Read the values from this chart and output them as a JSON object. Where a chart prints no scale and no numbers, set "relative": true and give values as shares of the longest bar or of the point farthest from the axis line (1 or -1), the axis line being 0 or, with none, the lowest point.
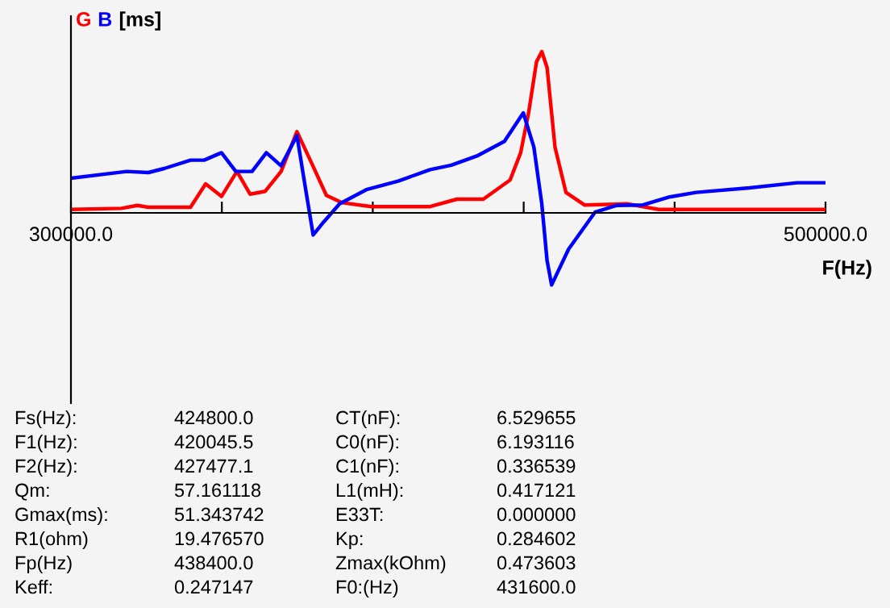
{
  "chart_data": {
    "type": "line",
    "relative": true,
    "ylabel": "[ms]",
    "xlabel": "F(Hz)",
    "xlim": [
      300000,
      500000
    ],
    "xticks": [
      {
        "value": 300000,
        "label": "300000.0"
      },
      {
        "value": 340000,
        "label": null
      },
      {
        "value": 380000,
        "label": null
      },
      {
        "value": 420000,
        "label": null
      },
      {
        "value": 460000,
        "label": null
      },
      {
        "value": 500000,
        "label": "500000.0"
      }
    ],
    "grid": false,
    "legend": false,
    "marker": "none",
    "line_style": "solid",
    "series": [
      {
        "name": "G",
        "color": "#ff0000",
        "x": [
          300000,
          313400,
          317600,
          320500,
          331700,
          335700,
          339900,
          344000,
          347500,
          351500,
          355700,
          359900,
          363900,
          367700,
          371900,
          379700,
          395200,
          402300,
          409300,
          416400,
          419200,
          421300,
          423400,
          424800,
          426200,
          428300,
          431200,
          436100,
          447400,
          455800,
          479800,
          500000
        ],
        "values": [
          0.021,
          0.028,
          0.046,
          0.035,
          0.035,
          0.18,
          0.102,
          0.257,
          0.116,
          0.134,
          0.257,
          0.504,
          0.303,
          0.109,
          0.063,
          0.039,
          0.039,
          0.085,
          0.085,
          0.204,
          0.373,
          0.62,
          0.937,
          1.0,
          0.901,
          0.408,
          0.127,
          0.049,
          0.056,
          0.021,
          0.021,
          0.021
        ]
      },
      {
        "name": "B",
        "color": "#0000ff",
        "x": [
          300000,
          314800,
          320500,
          324700,
          331700,
          335300,
          339900,
          343700,
          348000,
          351800,
          355700,
          359900,
          362100,
          364200,
          367000,
          371200,
          378300,
          386700,
          395200,
          400800,
          407900,
          414900,
          419900,
          422700,
          424800,
          426200,
          427400,
          431900,
          438900,
          444600,
          451600,
          458700,
          465700,
          479800,
          492500,
          500000
        ],
        "values": [
          0.215,
          0.257,
          0.25,
          0.275,
          0.327,
          0.327,
          0.373,
          0.257,
          0.257,
          0.373,
          0.292,
          0.479,
          0.162,
          -0.137,
          -0.056,
          0.056,
          0.144,
          0.197,
          0.268,
          0.296,
          0.356,
          0.444,
          0.62,
          0.408,
          0.056,
          -0.296,
          -0.447,
          -0.225,
          0.004,
          0.046,
          0.049,
          0.099,
          0.127,
          0.155,
          0.187,
          0.187
        ]
      }
    ],
    "annotations": [
      "Fs(Hz):",
      "424800.0",
      "CT(nF):",
      "6.529655",
      "F1(Hz):",
      "420045.5",
      "C0(nF):",
      "6.193116",
      "F2(Hz):",
      "427477.1",
      "C1(nF):",
      "0.336539",
      "Qm:",
      "57.161118",
      "L1(mH):",
      "0.417121",
      "Gmax(ms):",
      "51.343742",
      "E33T:",
      "0.000000",
      "R1(ohm)",
      "19.476570",
      "Kp:",
      "0.284602",
      "Fp(Hz)",
      "438400.0",
      "Zmax(kOhm)",
      "0.473603",
      "Keff:",
      "0.247147",
      "F0:(Hz)",
      "431600.0"
    ]
  }
}
